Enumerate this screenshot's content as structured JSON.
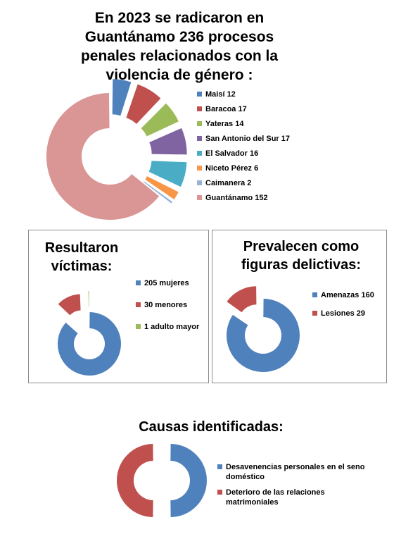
{
  "chart_data": [
    {
      "type": "pie",
      "title": "En 2023 se radicaron en Guantánamo 236 procesos penales relacionados con la violencia de género :",
      "categories": [
        "Maisí",
        "Baracoa",
        "Yateras",
        "San Antonio del Sur",
        "El Salvador",
        "Niceto Pérez",
        "Caimanera",
        "Guantánamo"
      ],
      "values": [
        12,
        17,
        14,
        17,
        16,
        6,
        2,
        152
      ],
      "legend": [
        "Maisí 12",
        "Baracoa 17",
        "Yateras 14",
        "San Antonio del Sur 17",
        "El Salvador 16",
        "Niceto Pérez 6",
        "Caimanera 2",
        "Guantánamo 152"
      ],
      "colors": [
        "#4f81bd",
        "#c0504d",
        "#9bbb59",
        "#8064a2",
        "#4bacc6",
        "#f79646",
        "#95b3d7",
        "#d99694"
      ],
      "legend_position": "right"
    },
    {
      "type": "pie",
      "title": "Resultaron víctimas:",
      "categories": [
        "mujeres",
        "menores",
        "adulto mayor"
      ],
      "values": [
        205,
        30,
        1
      ],
      "legend": [
        "205 mujeres",
        "30 menores",
        "1 adulto mayor"
      ],
      "colors": [
        "#4f81bd",
        "#c0504d",
        "#9bbb59"
      ],
      "legend_position": "right"
    },
    {
      "type": "pie",
      "title": "Prevalecen como figuras delictivas:",
      "categories": [
        "Amenazas",
        "Lesiones"
      ],
      "values": [
        160,
        29
      ],
      "legend": [
        "Amenazas 160",
        "Lesiones 29"
      ],
      "colors": [
        "#4f81bd",
        "#c0504d"
      ],
      "legend_position": "right"
    },
    {
      "type": "pie",
      "title": "Causas identificadas:",
      "categories": [
        "Desavenencias personales en el seno doméstico",
        "Deterioro de las relaciones matrimoniales"
      ],
      "values": [
        50,
        50
      ],
      "legend": [
        "Desavenencias personales en el seno doméstico",
        "Deterioro de las relaciones matrimoniales"
      ],
      "colors": [
        "#4f81bd",
        "#c0504d"
      ],
      "legend_position": "right"
    }
  ]
}
